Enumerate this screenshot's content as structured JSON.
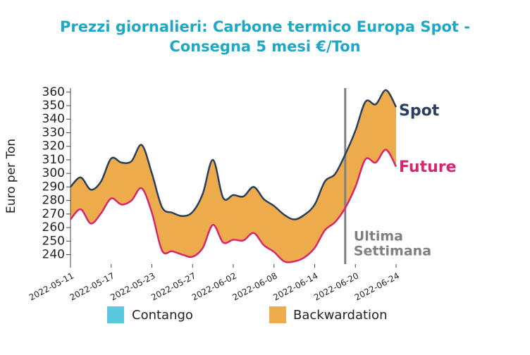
{
  "chart_data": {
    "type": "line",
    "title_lines": [
      "Prezzi giornalieri: Carbone termico Europa Spot -",
      "Consegna 5 mesi €/Ton"
    ],
    "y_label": "Euro per Ton",
    "categories": [
      "2022-05-11",
      null,
      null,
      null,
      "2022-05-17",
      null,
      null,
      null,
      "2022-05-23",
      null,
      null,
      null,
      "2022-05-27",
      null,
      null,
      null,
      "2022-06-02",
      null,
      null,
      null,
      "2022-06-08",
      null,
      null,
      null,
      "2022-06-14",
      null,
      null,
      null,
      "2022-06-20",
      null,
      null,
      null,
      "2022-06-24"
    ],
    "series": [
      {
        "name": "Spot",
        "color": "#2a3f5f",
        "values": [
          290,
          297,
          288,
          294,
          311,
          308,
          309,
          321,
          300,
          275,
          271,
          268.5,
          271.5,
          285,
          310,
          282,
          284,
          283,
          290,
          281,
          276,
          269.5,
          266,
          269.5,
          277,
          294,
          299.5,
          314,
          331.5,
          353,
          351,
          361.5,
          349
        ]
      },
      {
        "name": "Future",
        "color": "#d6266f",
        "values": [
          266,
          273.5,
          263,
          270.5,
          281.5,
          277,
          280,
          289,
          271,
          243,
          242.5,
          240,
          238.5,
          245,
          262,
          249,
          251,
          250.5,
          256,
          247,
          242,
          235,
          235,
          238,
          245,
          258,
          264,
          274.5,
          290,
          310.5,
          308,
          317.5,
          305
        ]
      }
    ],
    "fill_legend": [
      {
        "name": "Contango",
        "color": "#5bc8df"
      },
      {
        "name": "Backwardation",
        "color": "#edab4b"
      }
    ],
    "ylim": [
      233,
      363
    ],
    "yticks": [
      240,
      250,
      260,
      270,
      280,
      290,
      300,
      310,
      320,
      330,
      340,
      350,
      360
    ],
    "vertical_line_index": 27,
    "annotation_lines": [
      "Ultima",
      "Settimana"
    ]
  }
}
